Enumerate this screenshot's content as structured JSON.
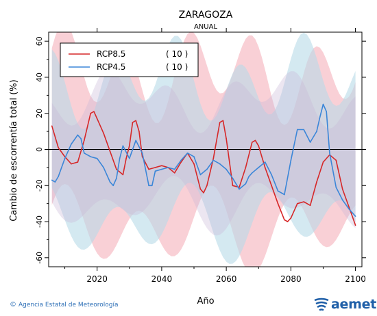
{
  "chart_data": {
    "type": "line",
    "title": "ZARAGOZA",
    "subtitle": "ANUAL",
    "xlabel": "Año",
    "ylabel": "Cambio de escorrentía total (%)",
    "xlim": [
      2005,
      2102
    ],
    "ylim": [
      -65,
      65
    ],
    "xticks": [
      2020,
      2040,
      2060,
      2080,
      2100
    ],
    "yticks": [
      -60,
      -40,
      -20,
      0,
      20,
      40,
      60
    ],
    "reference_line": 0,
    "legend_position": "top-left",
    "series": [
      {
        "name": "RCP8.5",
        "count_label": "( 10 )",
        "color": "#d62728",
        "band_color": "#f4aab5",
        "x": [
          2006,
          2008,
          2010,
          2012,
          2014,
          2016,
          2018,
          2019,
          2020,
          2022,
          2024,
          2026,
          2028,
          2029,
          2030,
          2031,
          2032,
          2033,
          2034,
          2036,
          2038,
          2040,
          2042,
          2044,
          2046,
          2048,
          2050,
          2052,
          2053,
          2054,
          2056,
          2058,
          2059,
          2060,
          2062,
          2064,
          2066,
          2068,
          2069,
          2070,
          2072,
          2074,
          2076,
          2078,
          2079,
          2080,
          2082,
          2084,
          2086,
          2088,
          2090,
          2092,
          2094,
          2096,
          2098,
          2100
        ],
        "values": [
          13,
          1,
          -4,
          -8,
          -7,
          5,
          20,
          21,
          17,
          9,
          -1,
          -11,
          -14,
          -5,
          2,
          15,
          16,
          10,
          -4,
          -11,
          -10,
          -9,
          -10,
          -13,
          -7,
          -2,
          -8,
          -22,
          -24,
          -20,
          -5,
          15,
          16,
          6,
          -20,
          -21,
          -10,
          4,
          5,
          2,
          -10,
          -20,
          -30,
          -39,
          -40,
          -38,
          -30,
          -29,
          -31,
          -18,
          -7,
          -3,
          -6,
          -22,
          -32,
          -42
        ]
      },
      {
        "name": "RCP4.5",
        "count_label": "( 10 )",
        "color": "#3b86d8",
        "band_color": "#b7dbe8",
        "x": [
          2006,
          2007,
          2008,
          2010,
          2012,
          2014,
          2015,
          2016,
          2018,
          2020,
          2022,
          2024,
          2025,
          2026,
          2027,
          2028,
          2030,
          2032,
          2034,
          2036,
          2037,
          2038,
          2040,
          2042,
          2044,
          2046,
          2048,
          2050,
          2052,
          2054,
          2056,
          2058,
          2060,
          2062,
          2064,
          2066,
          2067,
          2068,
          2070,
          2072,
          2074,
          2076,
          2078,
          2080,
          2082,
          2084,
          2086,
          2088,
          2089,
          2090,
          2091,
          2092,
          2094,
          2096,
          2098,
          2100
        ],
        "values": [
          -17,
          -18,
          -15,
          -5,
          3,
          8,
          6,
          -2,
          -4,
          -5,
          -10,
          -18,
          -20,
          -16,
          -5,
          2,
          -5,
          5,
          -2,
          -20,
          -20,
          -12,
          -11,
          -10,
          -11,
          -6,
          -2,
          -4,
          -14,
          -11,
          -6,
          -8,
          -11,
          -16,
          -22,
          -19,
          -15,
          -13,
          -10,
          -7,
          -14,
          -23,
          -25,
          -6,
          11,
          11,
          4,
          10,
          18,
          25,
          21,
          -2,
          -21,
          -28,
          -33,
          -37
        ]
      }
    ]
  },
  "footer": {
    "credit": "Agencia Estatal de Meteorología",
    "copyright_symbol": "©",
    "logo_text": "aemet"
  }
}
